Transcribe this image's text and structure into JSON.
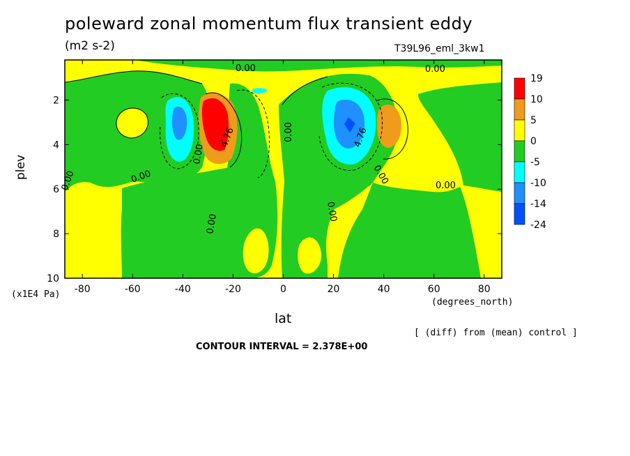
{
  "chart_data": {
    "type": "heatmap",
    "title": "poleward zonal momentum flux transient eddy",
    "units": "(m2 s-2)",
    "run_label": "T39L96_eml_3kw1",
    "xlabel": "lat",
    "x_unit": "(degrees_north)",
    "ylabel": "plev",
    "y_unit": "(x1E4 Pa)",
    "x_ticks": [
      "-80",
      "-60",
      "-40",
      "-20",
      "0",
      "20",
      "40",
      "60",
      "80"
    ],
    "y_ticks": [
      "2",
      "4",
      "6",
      "8",
      "10"
    ],
    "xlim": [
      -87,
      87
    ],
    "ylim": [
      10,
      0.2
    ],
    "footnote": "[ (diff) from (mean) control ]",
    "contour_interval": "CONTOUR INTERVAL = 2.378E+00",
    "contour_labels": [
      "0.00",
      "0.00",
      "0.00",
      "0.00",
      "0.00",
      "0.00",
      "0.00",
      "0.00",
      "0.00",
      "0.00",
      "4.76",
      "4.76"
    ],
    "colorbar": {
      "labels": [
        "19",
        "10",
        "5",
        "0",
        "-5",
        "-10",
        "-14",
        "-24"
      ],
      "colors": [
        "#ff0000",
        "#ef9b1c",
        "#ffff00",
        "#22cc22",
        "#00ffff",
        "#1e90ff",
        "#0050ff"
      ]
    },
    "features": [
      {
        "name": "positive maximum",
        "lat": -28,
        "plev": 3.2,
        "value": 19
      },
      {
        "name": "positive secondary",
        "lat": 43,
        "plev": 3.0,
        "value": 8
      },
      {
        "name": "negative minimum",
        "lat": 28,
        "plev": 3.0,
        "value": -24
      },
      {
        "name": "negative secondary",
        "lat": -42,
        "plev": 3.0,
        "value": -11
      }
    ]
  }
}
